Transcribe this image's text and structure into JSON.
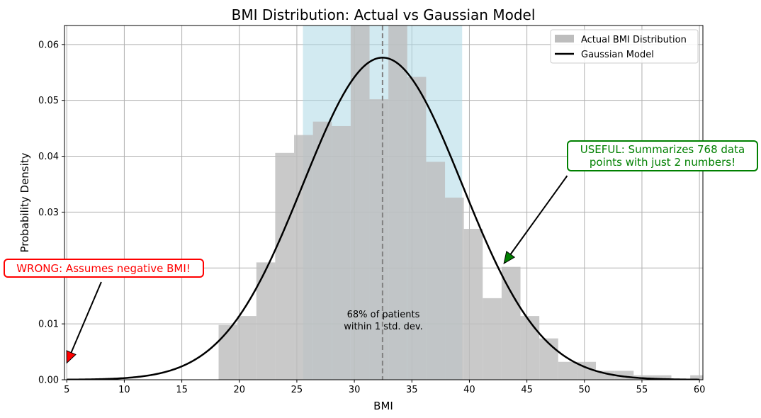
{
  "chart_data": {
    "type": "bar",
    "title": "BMI Distribution: Actual vs Gaussian Model",
    "xlabel": "BMI",
    "ylabel": "Probability Density",
    "xlim": [
      4.8,
      60.3
    ],
    "ylim": [
      0,
      0.0634
    ],
    "grid": true,
    "legend_position": "top-right",
    "x_ticks": [
      5,
      10,
      15,
      20,
      25,
      30,
      35,
      40,
      45,
      50,
      55,
      60
    ],
    "y_ticks": [
      0.0,
      0.01,
      0.02,
      0.03,
      0.04,
      0.05,
      0.06
    ],
    "x_tick_labels": [
      "5",
      "10",
      "15",
      "20",
      "25",
      "30",
      "35",
      "40",
      "45",
      "50",
      "55",
      "60"
    ],
    "y_tick_labels": [
      "0.00",
      "0.01",
      "0.02",
      "0.03",
      "0.04",
      "0.05",
      "0.06"
    ],
    "histogram": {
      "name": "Actual BMI Distribution",
      "color": "#bdbdbd",
      "bin_edges": [
        18.2,
        19.84,
        21.48,
        23.12,
        24.76,
        26.4,
        28.04,
        29.68,
        31.32,
        32.96,
        34.6,
        36.24,
        37.88,
        39.52,
        41.16,
        42.8,
        44.44,
        46.08,
        47.72,
        49.36,
        51.0,
        52.64,
        54.28,
        55.92,
        57.56,
        59.2,
        60.84
      ],
      "densities": [
        0.0098,
        0.0114,
        0.021,
        0.0406,
        0.0438,
        0.0462,
        0.0454,
        0.0634,
        0.0502,
        0.0634,
        0.0542,
        0.039,
        0.0326,
        0.027,
        0.0146,
        0.0202,
        0.0114,
        0.0074,
        0.0032,
        0.0032,
        0.0016,
        0.0016,
        0.0008,
        0.0008,
        0.0,
        0.0008
      ]
    },
    "gaussian": {
      "name": "Gaussian Model",
      "color": "#000000",
      "mean": 32.45,
      "std": 6.92
    },
    "shaded_region": {
      "from": 25.53,
      "to": 39.37,
      "color": "#add8e6",
      "label_lines": [
        "68% of patients",
        "within 1 std. dev."
      ]
    },
    "mean_line": {
      "x": 32.45,
      "color": "#808080"
    },
    "annotations": [
      {
        "id": "wrong",
        "text": "WRONG: Assumes negative BMI!",
        "color": "#ff0000",
        "arrow_from": {
          "x": 8.0,
          "y": 0.0175
        },
        "arrow_to": {
          "x": 5.0,
          "y": 0.003
        }
      },
      {
        "id": "useful",
        "text_lines": [
          "USEFUL: Summarizes 768 data",
          "points with just 2 numbers!"
        ],
        "color": "#008000",
        "arrow_from": {
          "x": 48.5,
          "y": 0.0365
        },
        "arrow_to": {
          "x": 43.0,
          "y": 0.0208
        }
      }
    ]
  }
}
